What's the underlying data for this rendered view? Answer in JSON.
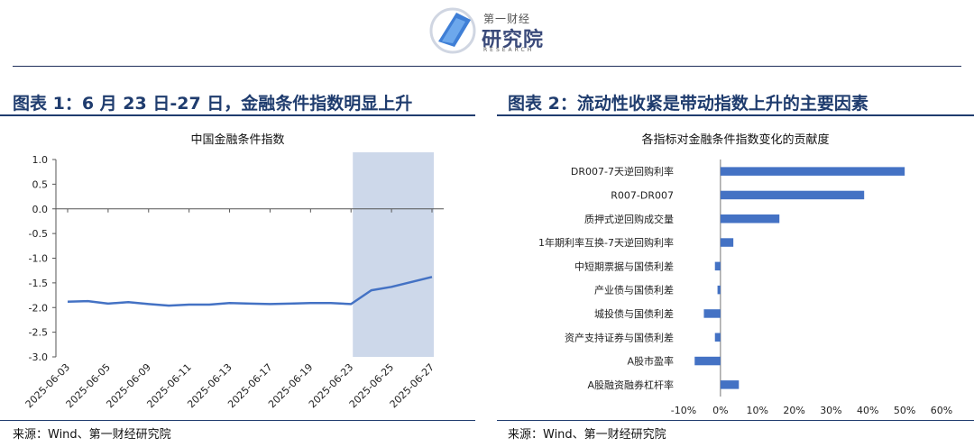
{
  "logo": {
    "top_text": "第一财经",
    "main_text": "研究院",
    "sub_text": "RESEARCH"
  },
  "left": {
    "title": "图表 1：6 月 23 日-27 日，金融条件指数明显上升",
    "source": "来源：Wind、第一财经研究院"
  },
  "right": {
    "title": "图表 2：流动性收紧是带动指数上升的主要因素",
    "source": "来源：Wind、第一财经研究院"
  },
  "colors": {
    "series": "#4472c4",
    "highlight": "#cdd8ea",
    "title": "#1f3c6e"
  },
  "chart_data": [
    {
      "type": "line",
      "title": "中国金融条件指数",
      "x": [
        "2025-06-03",
        "2025-06-04",
        "2025-06-05",
        "2025-06-06",
        "2025-06-09",
        "2025-06-10",
        "2025-06-11",
        "2025-06-12",
        "2025-06-13",
        "2025-06-16",
        "2025-06-17",
        "2025-06-18",
        "2025-06-19",
        "2025-06-20",
        "2025-06-23",
        "2025-06-24",
        "2025-06-25",
        "2025-06-26",
        "2025-06-27"
      ],
      "x_tick_labels": [
        "2025-06-03",
        "2025-06-05",
        "2025-06-09",
        "2025-06-11",
        "2025-06-13",
        "2025-06-17",
        "2025-06-19",
        "2025-06-23",
        "2025-06-25",
        "2025-06-27"
      ],
      "series": [
        {
          "values": [
            -1.88,
            -1.87,
            -1.92,
            -1.89,
            -1.93,
            -1.96,
            -1.94,
            -1.94,
            -1.91,
            -1.92,
            -1.93,
            -1.92,
            -1.91,
            -1.91,
            -1.93,
            -1.65,
            -1.58,
            -1.48,
            -1.38
          ]
        }
      ],
      "ylim": [
        -3.0,
        1.0
      ],
      "y_ticks": [
        "1.0",
        "0.5",
        "0.0",
        "-0.5",
        "-1.0",
        "-1.5",
        "-2.0",
        "-2.5",
        "-3.0"
      ],
      "highlight_range": [
        "2025-06-23",
        "2025-06-27"
      ],
      "grid": false
    },
    {
      "type": "bar",
      "orientation": "horizontal",
      "title": "各指标对金融条件指数变化的贡献度",
      "categories": [
        "DR007-7天逆回购利率",
        "R007-DR007",
        "质押式逆回购成交量",
        "1年期利率互换-7天逆回购利率",
        "中短期票据与国债利差",
        "产业债与国债利差",
        "城投债与国债利差",
        "资产支持证券与国债利差",
        "A股市盈率",
        "A股融资融券杠杆率"
      ],
      "values": [
        50,
        39,
        16,
        3.5,
        -1.5,
        -0.8,
        -4.5,
        -1.5,
        -7,
        5
      ],
      "xlim": [
        -10,
        60
      ],
      "x_ticks": [
        "-10%",
        "0%",
        "10%",
        "20%",
        "30%",
        "40%",
        "50%",
        "60%"
      ],
      "grid": false
    }
  ]
}
